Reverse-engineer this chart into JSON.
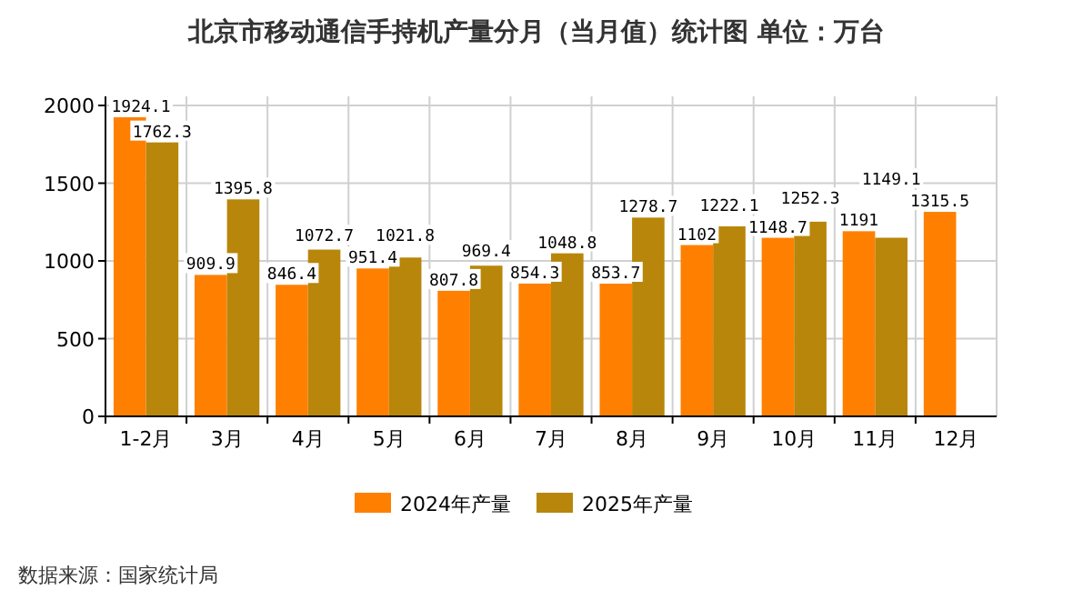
{
  "chart_data": {
    "type": "bar",
    "title": "北京市移动通信手持机产量分月（当月值）统计图 单位：万台",
    "categories": [
      "1-2月",
      "3月",
      "4月",
      "5月",
      "6月",
      "7月",
      "8月",
      "9月",
      "10月",
      "11月",
      "12月"
    ],
    "series": [
      {
        "name": "2024年产量",
        "color": "#ff8000",
        "values": [
          1924.1,
          909.9,
          846.4,
          951.4,
          807.8,
          854.3,
          853.7,
          1102,
          1148.7,
          1191,
          1315.5
        ]
      },
      {
        "name": "2025年产量",
        "color": "#b8860b",
        "values": [
          1762.3,
          1395.8,
          1072.7,
          1021.8,
          969.4,
          1048.8,
          1278.7,
          1222.1,
          1252.3,
          1149.1,
          null
        ]
      }
    ],
    "ylim": [
      0,
      2000
    ],
    "yticks": [
      0,
      500,
      1000,
      1500,
      2000
    ],
    "grid": true,
    "legend": "bottom",
    "data_labels": true,
    "annotations": [
      "数据来源：国家统计局"
    ]
  }
}
